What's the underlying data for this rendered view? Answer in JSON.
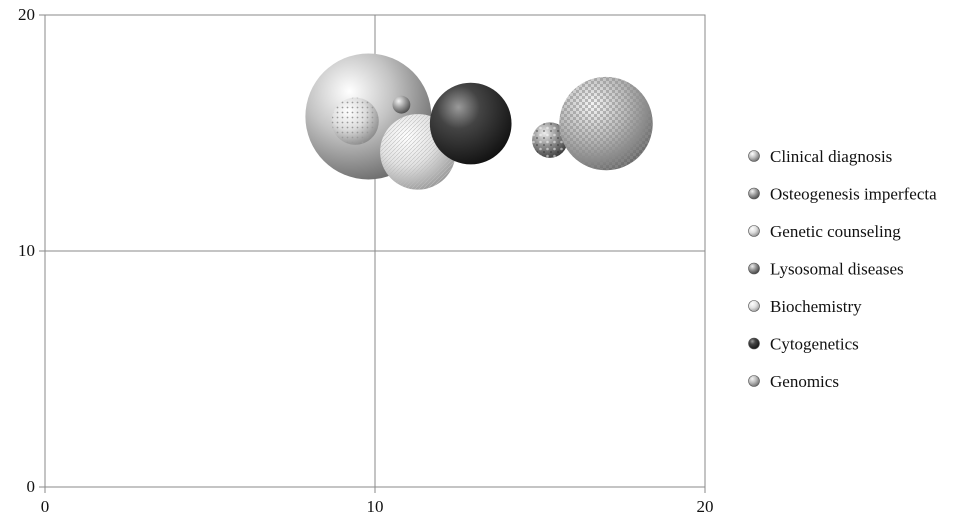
{
  "chart_data": {
    "type": "bubble",
    "xlim": [
      0,
      20
    ],
    "ylim": [
      0,
      20
    ],
    "xticks": [
      "0",
      "10",
      "20"
    ],
    "yticks": [
      "0",
      "10",
      "20"
    ],
    "grid": "major gridlines at 10",
    "legend_position": "right",
    "series": [
      {
        "name": "Clinical diagnosis",
        "x": 9.8,
        "y": 15.7,
        "size": 100,
        "style": "light-grey"
      },
      {
        "name": "Osteogenesis imperfecta",
        "x": 10.8,
        "y": 16.2,
        "size": 2,
        "style": "grey"
      },
      {
        "name": "Genetic counseling",
        "x": 9.4,
        "y": 15.5,
        "size": 14,
        "style": "dotted"
      },
      {
        "name": "Lysosomal diseases",
        "x": 15.3,
        "y": 14.7,
        "size": 8,
        "style": "mottled"
      },
      {
        "name": "Biochemistry",
        "x": 11.3,
        "y": 14.2,
        "size": 36,
        "style": "light-textured"
      },
      {
        "name": "Cytogenetics",
        "x": 12.9,
        "y": 15.4,
        "size": 42,
        "style": "dark"
      },
      {
        "name": "Genomics",
        "x": 17.0,
        "y": 15.4,
        "size": 55,
        "style": "checkered"
      }
    ]
  }
}
